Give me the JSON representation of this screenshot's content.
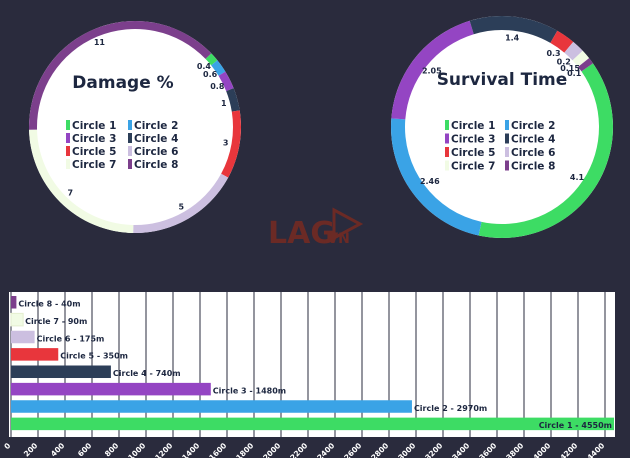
{
  "watermark": {
    "main": "LAG",
    "suffix": ".VN"
  },
  "colors": {
    "Circle 1": "#3ddc64",
    "Circle 2": "#3aa3e6",
    "Circle 3": "#9445c3",
    "Circle 4": "#2c3e58",
    "Circle 5": "#e8363c",
    "Circle 6": "#ccbfe0",
    "Circle 7": "#f1fbe4",
    "Circle 8": "#7c3f8c"
  },
  "chart_data": [
    {
      "type": "pie",
      "title": "Damage %",
      "legend": [
        "Circle 1",
        "Circle 2",
        "Circle 3",
        "Circle 4",
        "Circle 5",
        "Circle 6",
        "Circle 7",
        "Circle 8"
      ],
      "slices": [
        {
          "name": "Circle 1",
          "label": "0.4",
          "value": 0.4
        },
        {
          "name": "Circle 2",
          "label": "0.6",
          "value": 0.6
        },
        {
          "name": "Circle 3",
          "label": "0.8",
          "value": 0.8
        },
        {
          "name": "Circle 4",
          "label": "1",
          "value": 1
        },
        {
          "name": "Circle 5",
          "label": "3",
          "value": 3
        },
        {
          "name": "Circle 6",
          "label": "5",
          "value": 5
        },
        {
          "name": "Circle 7",
          "label": "7",
          "value": 7
        },
        {
          "name": "Circle 8",
          "label": "11",
          "value": 11
        }
      ]
    },
    {
      "type": "pie",
      "title": "Survival Time",
      "legend": [
        "Circle 1",
        "Circle 2",
        "Circle 3",
        "Circle 4",
        "Circle 5",
        "Circle 6",
        "Circle 7",
        "Circle 8"
      ],
      "slices": [
        {
          "name": "Circle 1",
          "label": "4.1",
          "value": 4.1
        },
        {
          "name": "Circle 2",
          "label": "2.46",
          "value": 2.46
        },
        {
          "name": "Circle 3",
          "label": "2.05",
          "value": 2.05
        },
        {
          "name": "Circle 4",
          "label": "1.4",
          "value": 1.4
        },
        {
          "name": "Circle 5",
          "label": "0.3",
          "value": 0.3
        },
        {
          "name": "Circle 6",
          "label": "0.2",
          "value": 0.2
        },
        {
          "name": "Circle 7",
          "label": "0.15",
          "value": 0.15
        },
        {
          "name": "Circle 8",
          "label": "0.1",
          "value": 0.1
        }
      ]
    },
    {
      "type": "bar",
      "orientation": "horizontal",
      "grid": true,
      "xlim": [
        0,
        4400
      ],
      "xticks": [
        0,
        200,
        400,
        600,
        800,
        1000,
        1200,
        1400,
        1600,
        1800,
        2000,
        2200,
        2400,
        2600,
        2800,
        3000,
        3200,
        3400,
        3600,
        3800,
        4000,
        4200,
        4400
      ],
      "bars": [
        {
          "name": "Circle 8",
          "label": "Circle 8 - 40m",
          "value": 40
        },
        {
          "name": "Circle 7",
          "label": "Circle 7 - 90m",
          "value": 90
        },
        {
          "name": "Circle 6",
          "label": "Circle 6 - 175m",
          "value": 175
        },
        {
          "name": "Circle 5",
          "label": "Circle 5 - 350m",
          "value": 350
        },
        {
          "name": "Circle 4",
          "label": "Circle 4 - 740m",
          "value": 740
        },
        {
          "name": "Circle 3",
          "label": "Circle 3 - 1480m",
          "value": 1480
        },
        {
          "name": "Circle 2",
          "label": "Circle 2 - 2970m",
          "value": 2970
        },
        {
          "name": "Circle 1",
          "label": "Circle 1 - 4550m",
          "value": 4550
        }
      ]
    }
  ]
}
